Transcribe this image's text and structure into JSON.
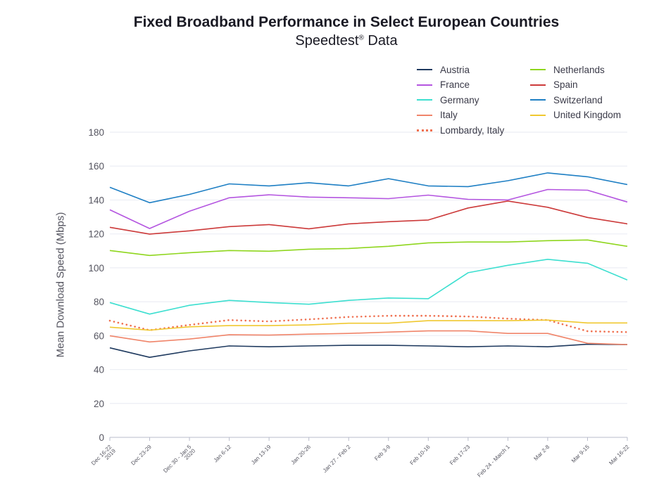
{
  "chart_data": {
    "type": "line",
    "title": "Fixed Broadband Performance in Select European Countries",
    "subtitle": "Speedtest",
    "subtitle_mark": "®",
    "subtitle_suffix": " Data",
    "xlabel": "",
    "ylabel": "Mean Download Speed (Mbps)",
    "ylim": [
      0,
      180
    ],
    "yticks": [
      0,
      20,
      40,
      60,
      80,
      100,
      120,
      140,
      160,
      180
    ],
    "grid": true,
    "legend_position": "top-right",
    "categories": [
      [
        "Dec 16-22",
        "2019"
      ],
      [
        "Dec 23-29"
      ],
      [
        "Dec 30 - Jan 5",
        "2020"
      ],
      [
        "Jan 6-12"
      ],
      [
        "Jan 13-19"
      ],
      [
        "Jan 20-26"
      ],
      [
        "Jan 27 - Feb 2"
      ],
      [
        "Feb 3-9"
      ],
      [
        "Feb 10-16"
      ],
      [
        "Feb 17-23"
      ],
      [
        "Feb 24 - March 1"
      ],
      [
        "Mar 2-8"
      ],
      [
        "Mar 9-15"
      ],
      [
        "Mar 16-22"
      ]
    ],
    "series": [
      {
        "name": "Austria",
        "color": "#1f3a5f",
        "dashed": false,
        "values": [
          52.8,
          47.2,
          51.0,
          53.9,
          53.4,
          53.9,
          54.3,
          54.3,
          53.9,
          53.4,
          53.9,
          53.4,
          54.9,
          54.7
        ]
      },
      {
        "name": "France",
        "color": "#b455e0",
        "dashed": false,
        "values": [
          134.2,
          123.2,
          133.4,
          141.3,
          143.1,
          141.7,
          141.3,
          140.8,
          142.9,
          140.4,
          140.0,
          146.2,
          145.8,
          138.8
        ]
      },
      {
        "name": "Germany",
        "color": "#3ddfd0",
        "dashed": false,
        "values": [
          79.5,
          72.7,
          77.9,
          80.8,
          79.5,
          78.5,
          80.8,
          82.2,
          81.8,
          97.1,
          101.5,
          105.0,
          102.7,
          92.8
        ]
      },
      {
        "name": "Italy",
        "color": "#f0856a",
        "dashed": false,
        "values": [
          59.9,
          56.3,
          58.0,
          60.5,
          60.3,
          60.9,
          61.3,
          62.1,
          62.8,
          62.8,
          61.3,
          61.3,
          55.5,
          54.7
        ]
      },
      {
        "name": "Lombardy, Italy",
        "color": "#f07050",
        "dashed": true,
        "values": [
          68.8,
          63.2,
          66.3,
          69.2,
          68.4,
          69.6,
          71.0,
          71.7,
          71.7,
          71.3,
          70.0,
          69.2,
          62.6,
          62.1
        ]
      },
      {
        "name": "Netherlands",
        "color": "#8fd61e",
        "dashed": false,
        "values": [
          110.2,
          107.3,
          108.9,
          110.2,
          109.8,
          111.0,
          111.4,
          112.7,
          114.7,
          115.2,
          115.2,
          116.0,
          116.4,
          112.7
        ]
      },
      {
        "name": "Spain",
        "color": "#cc3a3a",
        "dashed": false,
        "values": [
          123.9,
          119.9,
          121.8,
          124.3,
          125.5,
          123.0,
          125.9,
          127.2,
          128.2,
          135.3,
          139.4,
          135.7,
          129.7,
          125.9
        ]
      },
      {
        "name": "Switzerland",
        "color": "#1e7fc4",
        "dashed": false,
        "values": [
          147.5,
          138.4,
          143.3,
          149.5,
          148.3,
          150.2,
          148.3,
          152.6,
          148.3,
          147.9,
          151.4,
          156.0,
          153.7,
          149.1
        ]
      },
      {
        "name": "United Kingdom",
        "color": "#f0c830",
        "dashed": false,
        "values": [
          65.0,
          63.2,
          65.2,
          65.9,
          65.9,
          66.3,
          67.3,
          67.3,
          68.8,
          68.8,
          68.8,
          69.2,
          67.5,
          67.5
        ]
      }
    ]
  }
}
